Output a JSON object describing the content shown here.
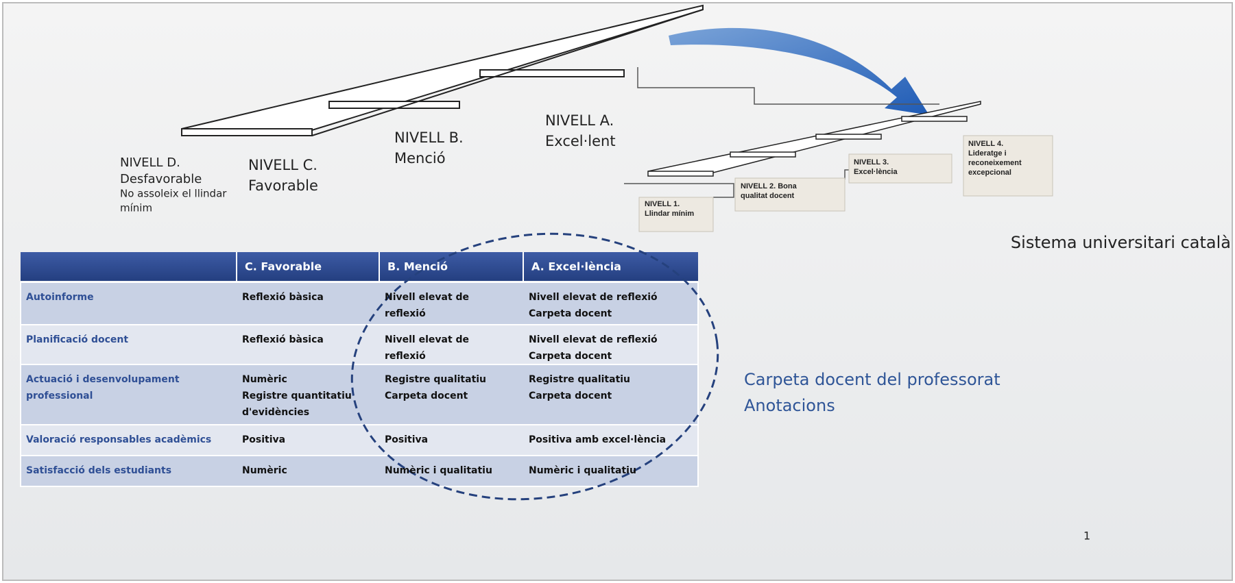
{
  "left_levels": [
    {
      "lines": [
        "NIVELL D.",
        "Desfavorable",
        "No assoleix el llindar",
        "mínim"
      ]
    },
    {
      "lines": [
        "NIVELL C.",
        "Favorable"
      ]
    },
    {
      "lines": [
        "NIVELL B.",
        "Menció"
      ]
    },
    {
      "lines": [
        "NIVELL A.",
        "Excel·lent"
      ]
    }
  ],
  "right_levels": [
    {
      "lines": [
        "NIVELL 1.",
        "Llindar mínim"
      ]
    },
    {
      "lines": [
        "NIVELL 2. Bona",
        "qualitat docent"
      ]
    },
    {
      "lines": [
        "NIVELL 3.",
        "Excel·lència"
      ]
    },
    {
      "lines": [
        "NIVELL 4.",
        "Lideratge i",
        "reconeixement",
        "excepcional"
      ]
    }
  ],
  "right_caption": "Sistema universitari català",
  "table": {
    "header": [
      "C. Favorable",
      "B. Menció",
      "A. Excel·lència"
    ],
    "rows": [
      [
        [
          "Autoinforme"
        ],
        [
          "Reflexió bàsica"
        ],
        [
          "Nivell elevat de",
          "reflexió"
        ],
        [
          "Nivell elevat de reflexió",
          "Carpeta docent"
        ]
      ],
      [
        [
          "Planificació docent"
        ],
        [
          "Reflexió bàsica"
        ],
        [
          "Nivell elevat de",
          "reflexió"
        ],
        [
          "Nivell elevat de reflexió",
          "Carpeta docent"
        ]
      ],
      [
        [
          "Actuació i desenvolupament",
          "professional"
        ],
        [
          "Numèric",
          "Registre quantitatiu",
          "d'evidències"
        ],
        [
          "Registre qualitatiu",
          "Carpeta docent"
        ],
        [
          "Registre qualitatiu",
          "Carpeta docent"
        ]
      ],
      [
        [
          "Valoració responsables acadèmics"
        ],
        [
          "Positiva"
        ],
        [
          "Positiva"
        ],
        [
          "Positiva amb excel·lència"
        ]
      ],
      [
        [
          "Satisfacció dels estudiants"
        ],
        [
          "Numèric"
        ],
        [
          "Numèric i qualitatiu"
        ],
        [
          "Numèric i qualitatiu"
        ]
      ]
    ]
  },
  "side_notes": [
    "Carpeta docent del professorat",
    "Anotacions"
  ],
  "page_number": "1"
}
